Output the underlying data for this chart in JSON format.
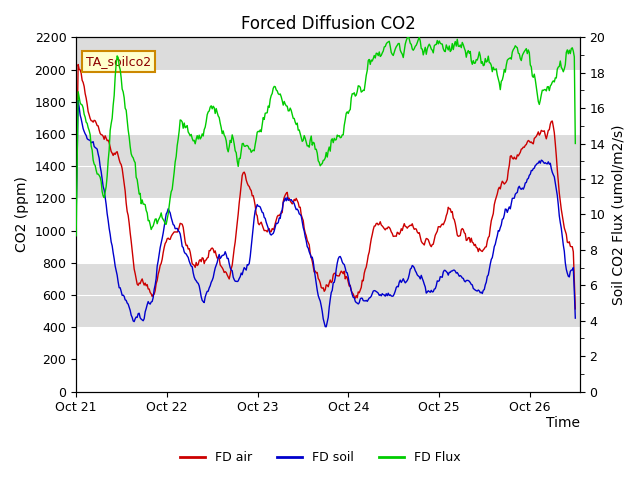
{
  "title": "Forced Diffusion CO2",
  "xlabel": "Time",
  "ylabel_left": "CO2 (ppm)",
  "ylabel_right": "Soil CO2 Flux (umol/m2/s)",
  "legend_label": "TA_soilco2",
  "ylim_left": [
    0,
    2200
  ],
  "ylim_right": [
    0,
    20
  ],
  "x_tick_labels": [
    "Oct 21",
    "Oct 22",
    "Oct 23",
    "Oct 24",
    "Oct 25",
    "Oct 26"
  ],
  "series_labels": [
    "FD air",
    "FD soil",
    "FD Flux"
  ],
  "series_colors": [
    "#cc0000",
    "#0000cc",
    "#00cc00"
  ],
  "band_color": "#dcdcdc",
  "title_fontsize": 12,
  "axis_fontsize": 10,
  "tick_fontsize": 9,
  "legend_box_color": "#ffffcc",
  "legend_box_edge": "#cc8800"
}
